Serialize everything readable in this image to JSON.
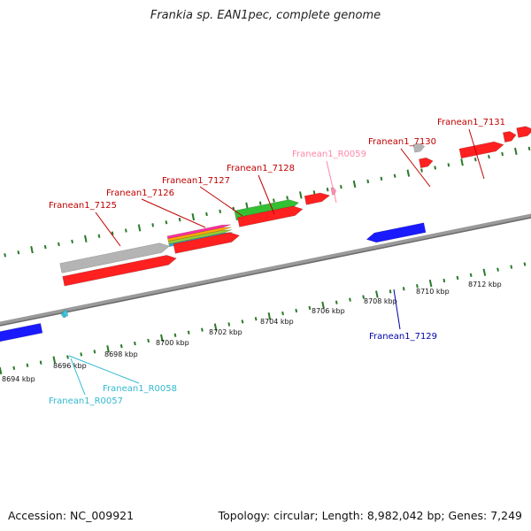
{
  "title": "Frankia sp. EAN1pec, complete genome",
  "footer": {
    "accession": "Accession: NC_009921",
    "summary": "Topology: circular; Length: 8,982,042 bp; Genes: 7,249"
  },
  "colors": {
    "cds": "#ff2020",
    "cds_reverse": "#1a1aff",
    "cds_grey": "#b4b4b4",
    "cds_green": "#33c033",
    "rna_pink": "#ff8fb3",
    "rna_cyan": "#3cc8e0",
    "tick": "#2a7a2a",
    "label_red": "#c00000",
    "label_blue": "#0000aa",
    "label_pink": "#ff88aa",
    "label_cyan": "#33b8d0"
  },
  "axis": {
    "ticks": [
      {
        "label": "8694 kbp"
      },
      {
        "label": "8696 kbp"
      },
      {
        "label": "8698 kbp"
      },
      {
        "label": "8700 kbp"
      },
      {
        "label": "8702 kbp"
      },
      {
        "label": "8704 kbp"
      },
      {
        "label": "8706 kbp"
      },
      {
        "label": "8708 kbp"
      },
      {
        "label": "8710 kbp"
      },
      {
        "label": "8712 kbp"
      }
    ]
  },
  "gene_labels": [
    {
      "name": "Franean1_7125",
      "color_key": "label_red"
    },
    {
      "name": "Franean1_7126",
      "color_key": "label_red"
    },
    {
      "name": "Franean1_7127",
      "color_key": "label_red"
    },
    {
      "name": "Franean1_7128",
      "color_key": "label_red"
    },
    {
      "name": "Franean1_R0059",
      "color_key": "label_pink"
    },
    {
      "name": "Franean1_7130",
      "color_key": "label_red"
    },
    {
      "name": "Franean1_7131",
      "color_key": "label_red"
    },
    {
      "name": "Franean1_7129",
      "color_key": "label_blue"
    },
    {
      "name": "Franean1_R0058",
      "color_key": "label_cyan"
    },
    {
      "name": "Franean1_R0057",
      "color_key": "label_cyan"
    }
  ]
}
